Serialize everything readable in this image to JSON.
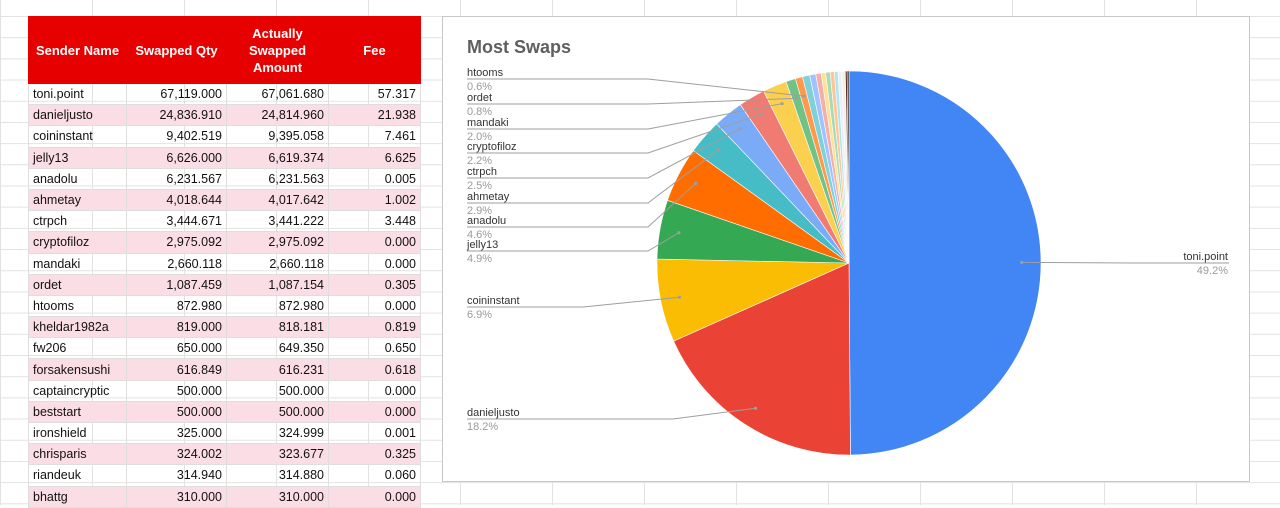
{
  "table": {
    "headers": [
      "Sender Name",
      "Swapped Qty",
      "Actually Swapped Amount",
      "Fee"
    ],
    "rows": [
      [
        "toni.point",
        "67,119.000",
        "67,061.680",
        "57.317"
      ],
      [
        "danieljusto",
        "24,836.910",
        "24,814.960",
        "21.938"
      ],
      [
        "coininstant",
        "9,402.519",
        "9,395.058",
        "7.461"
      ],
      [
        "jelly13",
        "6,626.000",
        "6,619.374",
        "6.625"
      ],
      [
        "anadolu",
        "6,231.567",
        "6,231.563",
        "0.005"
      ],
      [
        "ahmetay",
        "4,018.644",
        "4,017.642",
        "1.002"
      ],
      [
        "ctrpch",
        "3,444.671",
        "3,441.222",
        "3.448"
      ],
      [
        "cryptofiloz",
        "2,975.092",
        "2,975.092",
        "0.000"
      ],
      [
        "mandaki",
        "2,660.118",
        "2,660.118",
        "0.000"
      ],
      [
        "ordet",
        "1,087.459",
        "1,087.154",
        "0.305"
      ],
      [
        "htooms",
        "872.980",
        "872.980",
        "0.000"
      ],
      [
        "kheldar1982a",
        "819.000",
        "818.181",
        "0.819"
      ],
      [
        "fw206",
        "650.000",
        "649.350",
        "0.650"
      ],
      [
        "forsakensushi",
        "616.849",
        "616.231",
        "0.618"
      ],
      [
        "captaincryptic",
        "500.000",
        "500.000",
        "0.000"
      ],
      [
        "beststart",
        "500.000",
        "500.000",
        "0.000"
      ],
      [
        "ironshield",
        "325.000",
        "324.999",
        "0.001"
      ],
      [
        "chrisparis",
        "324.002",
        "323.677",
        "0.325"
      ],
      [
        "riandeuk",
        "314.940",
        "314.880",
        "0.060"
      ],
      [
        "bhattg",
        "310.000",
        "310.000",
        "0.000"
      ]
    ]
  },
  "chart_data": {
    "type": "pie",
    "title": "Most Swaps",
    "slices": [
      {
        "label": "toni.point",
        "pct_label": "49.2%",
        "value": 49.2,
        "color": "#4285f4",
        "labeled": true
      },
      {
        "label": "danieljusto",
        "pct_label": "18.2%",
        "value": 18.2,
        "color": "#ea4335",
        "labeled": true
      },
      {
        "label": "coininstant",
        "pct_label": "6.9%",
        "value": 6.9,
        "color": "#fbbc04",
        "labeled": true
      },
      {
        "label": "jelly13",
        "pct_label": "4.9%",
        "value": 4.9,
        "color": "#34a853",
        "labeled": true
      },
      {
        "label": "anadolu",
        "pct_label": "4.6%",
        "value": 4.6,
        "color": "#ff6d01",
        "labeled": true
      },
      {
        "label": "ahmetay",
        "pct_label": "2.9%",
        "value": 2.9,
        "color": "#46bdc6",
        "labeled": true
      },
      {
        "label": "ctrpch",
        "pct_label": "2.5%",
        "value": 2.5,
        "color": "#7baaf7",
        "labeled": true
      },
      {
        "label": "cryptofiloz",
        "pct_label": "2.2%",
        "value": 2.2,
        "color": "#f07b72",
        "labeled": true
      },
      {
        "label": "mandaki",
        "pct_label": "2.0%",
        "value": 2.0,
        "color": "#fcd04f",
        "labeled": true
      },
      {
        "label": "ordet",
        "pct_label": "0.8%",
        "value": 0.8,
        "color": "#71c287",
        "labeled": true
      },
      {
        "label": "htooms",
        "pct_label": "0.6%",
        "value": 0.6,
        "color": "#ff994d",
        "labeled": true
      },
      {
        "label": "",
        "pct_label": "",
        "value": 0.6,
        "color": "#7ed1d7",
        "labeled": false
      },
      {
        "label": "",
        "pct_label": "",
        "value": 0.5,
        "color": "#a0c3ff",
        "labeled": false
      },
      {
        "label": "",
        "pct_label": "",
        "value": 0.45,
        "color": "#f6aea9",
        "labeled": false
      },
      {
        "label": "",
        "pct_label": "",
        "value": 0.37,
        "color": "#fde293",
        "labeled": false
      },
      {
        "label": "",
        "pct_label": "",
        "value": 0.37,
        "color": "#a8dab5",
        "labeled": false
      },
      {
        "label": "",
        "pct_label": "",
        "value": 0.35,
        "color": "#ffc599",
        "labeled": false
      },
      {
        "label": "",
        "pct_label": "",
        "value": 0.3,
        "color": "#b3e5e8",
        "labeled": false
      },
      {
        "label": "",
        "pct_label": "",
        "value": 0.3,
        "color": "#e8f0fe",
        "labeled": false
      },
      {
        "label": "",
        "pct_label": "",
        "value": 0.3,
        "color": "#f5f0e1",
        "labeled": false
      },
      {
        "label": "",
        "pct_label": "",
        "value": 0.15,
        "color": "#5a2a2a",
        "labeled": false
      },
      {
        "label": "",
        "pct_label": "",
        "value": 0.15,
        "color": "#222222",
        "labeled": false
      }
    ]
  }
}
